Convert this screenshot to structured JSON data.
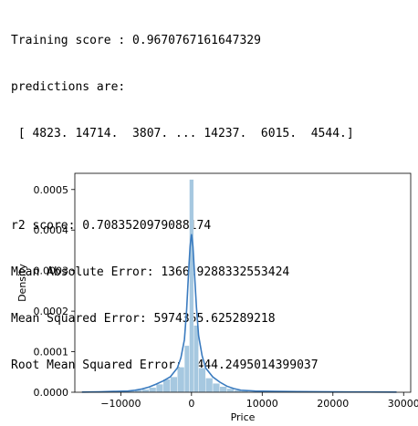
{
  "console": {
    "training_score": "Training score : 0.9670767161647329",
    "predictions_header": "predictions are:",
    "predictions_values": " [ 4823. 14714.  3807. ... 14237.  6015.  4544.]",
    "r2_score": "r2 score: 0.7083520979088174",
    "mae": "Mean Absolute Error: 1366.9288332553424",
    "mse": "Mean Squared Error: 5974355.625289218",
    "rmse": "Root Mean Squared Error: 2444.2495014399037"
  },
  "chart_data": {
    "type": "bar",
    "title": "",
    "xlabel": "Price",
    "ylabel": "Density",
    "xlim": [
      -16500,
      31000
    ],
    "ylim": [
      0,
      0.00054
    ],
    "xticks": [
      -10000,
      0,
      10000,
      20000,
      30000
    ],
    "xtick_labels": [
      "−10000",
      "0",
      "10000",
      "20000",
      "30000"
    ],
    "yticks": [
      0,
      0.0001,
      0.0002,
      0.0003,
      0.0004,
      0.0005
    ],
    "ytick_labels": [
      "0.0000",
      "0.0001",
      "0.0002",
      "0.0003",
      "0.0004",
      "0.0005"
    ],
    "grid": false,
    "legend": "none",
    "histogram": {
      "color": "#a6c8e0",
      "bins": [
        {
          "x0": -9000,
          "x1": -8000,
          "value": 3e-06
        },
        {
          "x0": -8000,
          "x1": -7000,
          "value": 5e-06
        },
        {
          "x0": -7000,
          "x1": -6000,
          "value": 7e-06
        },
        {
          "x0": -6000,
          "x1": -5000,
          "value": 1.2e-05
        },
        {
          "x0": -5000,
          "x1": -4000,
          "value": 2e-05
        },
        {
          "x0": -4000,
          "x1": -3000,
          "value": 3.2e-05
        },
        {
          "x0": -3000,
          "x1": -2000,
          "value": 3.8e-05
        },
        {
          "x0": -2000,
          "x1": -1000,
          "value": 6.2e-05
        },
        {
          "x0": -1000,
          "x1": -300,
          "value": 0.000115
        },
        {
          "x0": -300,
          "x1": 300,
          "value": 0.000525
        },
        {
          "x0": 300,
          "x1": 1000,
          "value": 0.000165
        },
        {
          "x0": 1000,
          "x1": 2000,
          "value": 6e-05
        },
        {
          "x0": 2000,
          "x1": 3000,
          "value": 3.5e-05
        },
        {
          "x0": 3000,
          "x1": 4000,
          "value": 2.2e-05
        },
        {
          "x0": 4000,
          "x1": 5000,
          "value": 1.4e-05
        },
        {
          "x0": 5000,
          "x1": 6000,
          "value": 9e-06
        },
        {
          "x0": 6000,
          "x1": 7000,
          "value": 5e-06
        },
        {
          "x0": 7000,
          "x1": 8000,
          "value": 3e-06
        }
      ]
    },
    "kde": {
      "color": "#3a7bbf",
      "points": [
        [
          -15500,
          5e-07
        ],
        [
          -13000,
          1e-06
        ],
        [
          -11000,
          2e-06
        ],
        [
          -9000,
          3e-06
        ],
        [
          -8000,
          5e-06
        ],
        [
          -7000,
          8e-06
        ],
        [
          -6000,
          1.3e-05
        ],
        [
          -5000,
          2e-05
        ],
        [
          -4000,
          2.8e-05
        ],
        [
          -3000,
          3.8e-05
        ],
        [
          -2000,
          6e-05
        ],
        [
          -1500,
          8.5e-05
        ],
        [
          -1000,
          0.00013
        ],
        [
          -700,
          0.0002
        ],
        [
          -400,
          0.0003
        ],
        [
          -200,
          0.00036
        ],
        [
          0,
          0.00039
        ],
        [
          200,
          0.00036
        ],
        [
          400,
          0.0003
        ],
        [
          700,
          0.00021
        ],
        [
          1000,
          0.00014
        ],
        [
          1500,
          9e-05
        ],
        [
          2000,
          6e-05
        ],
        [
          3000,
          3.8e-05
        ],
        [
          4000,
          2.5e-05
        ],
        [
          5000,
          1.5e-05
        ],
        [
          6000,
          9e-06
        ],
        [
          7000,
          5e-06
        ],
        [
          9000,
          3e-06
        ],
        [
          12000,
          2e-06
        ],
        [
          15000,
          1.5e-06
        ],
        [
          20000,
          1e-06
        ],
        [
          25000,
          7e-07
        ],
        [
          29000,
          5e-07
        ]
      ]
    }
  }
}
